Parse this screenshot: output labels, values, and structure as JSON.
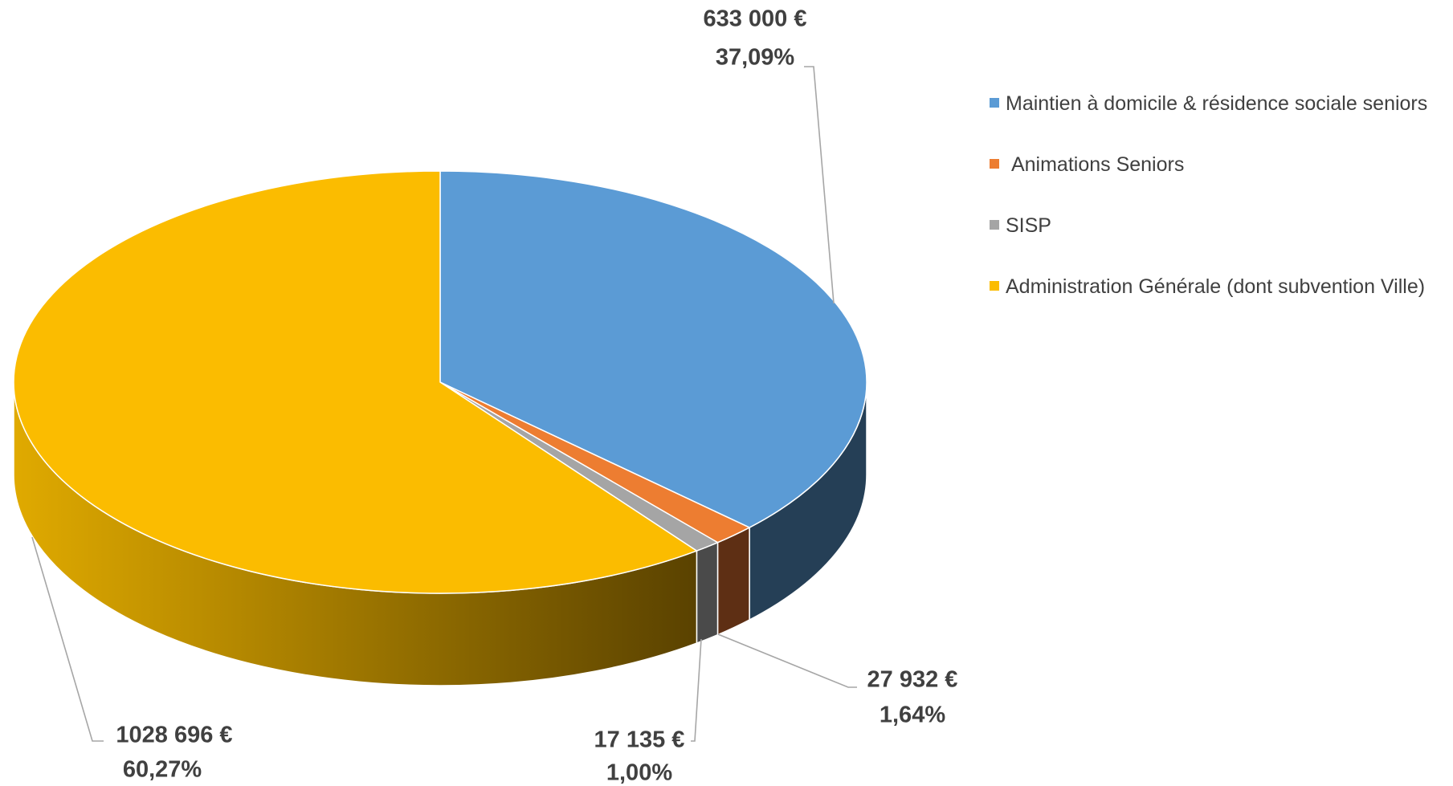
{
  "chart_data": {
    "type": "pie3d",
    "categories": [
      "Maintien à domicile & résidence sociale seniors",
      " Animations Seniors",
      "SISP",
      "Administration Générale (dont subvention Ville)"
    ],
    "values": [
      633000,
      27932,
      17135,
      1028696
    ],
    "value_labels": [
      "633 000 €",
      "27 932 €",
      "17 135 €",
      "1028 696 €"
    ],
    "percentages": [
      37.09,
      1.64,
      1.0,
      60.27
    ],
    "percentage_labels": [
      "37,09%",
      "1,64%",
      "1,00%",
      "60,27%"
    ],
    "colors": [
      "#5b9bd5",
      "#ed7d31",
      "#a5a5a5",
      "#fbbc00"
    ],
    "legend": "right"
  }
}
